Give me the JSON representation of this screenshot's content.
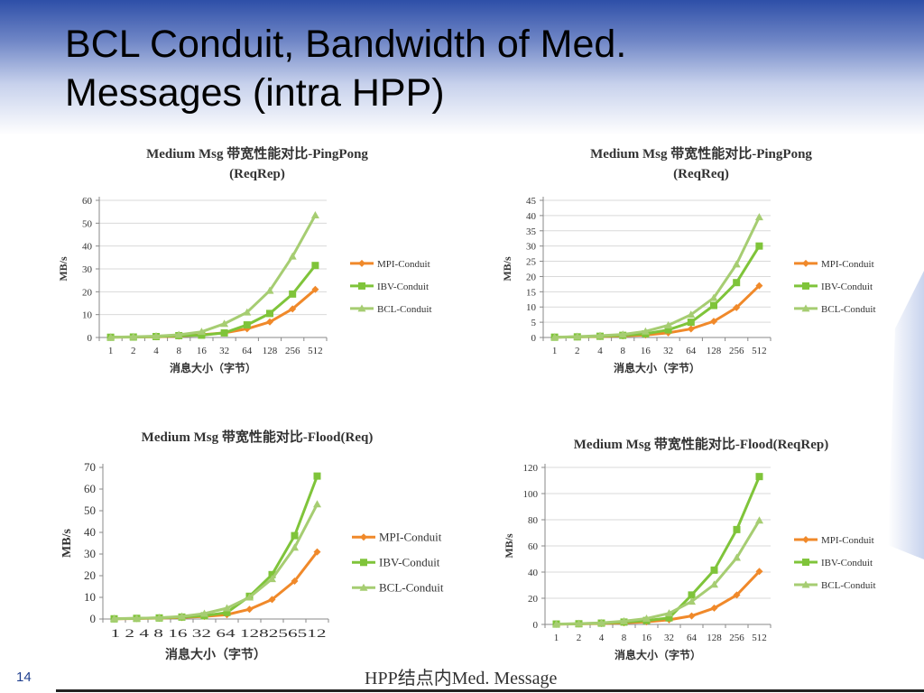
{
  "slide": {
    "title_line1": "BCL Conduit, Bandwidth of Med.",
    "title_line2": "Messages (intra HPP)",
    "page_number": "14",
    "footer_caption": "HPP结点内Med. Message"
  },
  "colors": {
    "mpi": "#f0892a",
    "ibv": "#7fc43a",
    "bcl": "#a6cd72",
    "axis": "#888888",
    "grid": "#d9d9d9",
    "text": "#333333"
  },
  "chart_data": [
    {
      "type": "line",
      "title_line1": "Medium Msg 带宽性能对比-PingPong",
      "title_line2": "(ReqRep)",
      "xlabel": "消息大小（字节）",
      "ylabel": "MB/s",
      "categories": [
        "1",
        "2",
        "4",
        "8",
        "16",
        "32",
        "64",
        "128",
        "256",
        "512"
      ],
      "ylim": [
        0,
        60
      ],
      "yticks": [
        0,
        10,
        20,
        30,
        40,
        50,
        60
      ],
      "grid": true,
      "legend": "right",
      "series": [
        {
          "name": "MPI-Conduit",
          "values": [
            0.1,
            0.2,
            0.3,
            0.6,
            1.2,
            2.0,
            3.8,
            6.8,
            12.5,
            21.0
          ]
        },
        {
          "name": "IBV-Conduit",
          "values": [
            0.1,
            0.2,
            0.4,
            0.8,
            1.0,
            2.0,
            5.5,
            10.5,
            19.0,
            31.5
          ]
        },
        {
          "name": "BCL-Conduit",
          "values": [
            0.1,
            0.3,
            0.6,
            1.2,
            2.5,
            6.0,
            11.0,
            20.5,
            35.5,
            53.5
          ]
        }
      ]
    },
    {
      "type": "line",
      "title_line1": "Medium Msg 带宽性能对比-PingPong",
      "title_line2": "(ReqReq)",
      "xlabel": "消息大小（字节）",
      "ylabel": "MB/s",
      "categories": [
        "1",
        "2",
        "4",
        "8",
        "16",
        "32",
        "64",
        "128",
        "256",
        "512"
      ],
      "ylim": [
        0,
        45
      ],
      "yticks": [
        0,
        5,
        10,
        15,
        20,
        25,
        30,
        35,
        40,
        45
      ],
      "grid": true,
      "legend": "right",
      "series": [
        {
          "name": "MPI-Conduit",
          "values": [
            0.1,
            0.2,
            0.3,
            0.5,
            0.8,
            1.5,
            2.8,
            5.3,
            9.8,
            17.0
          ]
        },
        {
          "name": "IBV-Conduit",
          "values": [
            0.1,
            0.2,
            0.4,
            0.7,
            1.2,
            2.5,
            5.0,
            10.5,
            18.0,
            30.0
          ]
        },
        {
          "name": "BCL-Conduit",
          "values": [
            0.1,
            0.3,
            0.6,
            1.0,
            2.0,
            4.0,
            7.5,
            13.0,
            24.0,
            39.5
          ]
        }
      ]
    },
    {
      "type": "line",
      "title_line1": "Medium Msg 带宽性能对比-Flood(Req)",
      "title_line2": "",
      "xlabel": "消息大小（字节）",
      "ylabel": "MB/s",
      "categories": [
        "1",
        "2",
        "4",
        "8",
        "16",
        "32",
        "64",
        "128",
        "256",
        "512"
      ],
      "xtick_text": "1 2 4 8 16 32 64 128256512",
      "ylim": [
        0,
        70
      ],
      "yticks": [
        0,
        10,
        20,
        30,
        40,
        50,
        60,
        70
      ],
      "grid": false,
      "legend": "right",
      "series": [
        {
          "name": "MPI-Conduit",
          "values": [
            0.1,
            0.2,
            0.4,
            0.7,
            1.2,
            2.0,
            4.5,
            9.0,
            17.5,
            31.0
          ]
        },
        {
          "name": "IBV-Conduit",
          "values": [
            0.1,
            0.3,
            0.5,
            0.9,
            1.5,
            3.0,
            10.5,
            20.5,
            38.5,
            66.0
          ]
        },
        {
          "name": "BCL-Conduit",
          "values": [
            0.2,
            0.3,
            0.6,
            1.2,
            2.5,
            5.0,
            10.0,
            18.5,
            33.0,
            53.0
          ]
        }
      ]
    },
    {
      "type": "line",
      "title_line1": "Medium Msg 带宽性能对比-Flood(ReqRep)",
      "title_line2": "",
      "xlabel": "消息大小（字节）",
      "ylabel": "MB/s",
      "categories": [
        "1",
        "2",
        "4",
        "8",
        "16",
        "32",
        "64",
        "128",
        "256",
        "512"
      ],
      "ylim": [
        0,
        120
      ],
      "yticks": [
        0,
        20,
        40,
        60,
        80,
        100,
        120
      ],
      "grid": true,
      "legend": "right",
      "series": [
        {
          "name": "MPI-Conduit",
          "values": [
            0.2,
            0.4,
            0.7,
            1.2,
            2.0,
            3.5,
            6.5,
            12.5,
            22.5,
            40.5
          ]
        },
        {
          "name": "IBV-Conduit",
          "values": [
            0.3,
            0.5,
            1.0,
            1.8,
            3.0,
            5.0,
            22.5,
            41.5,
            72.5,
            113.0
          ]
        },
        {
          "name": "BCL-Conduit",
          "values": [
            0.3,
            0.6,
            1.2,
            2.5,
            4.5,
            8.5,
            17.5,
            30.5,
            51.0,
            79.5
          ]
        }
      ]
    }
  ]
}
